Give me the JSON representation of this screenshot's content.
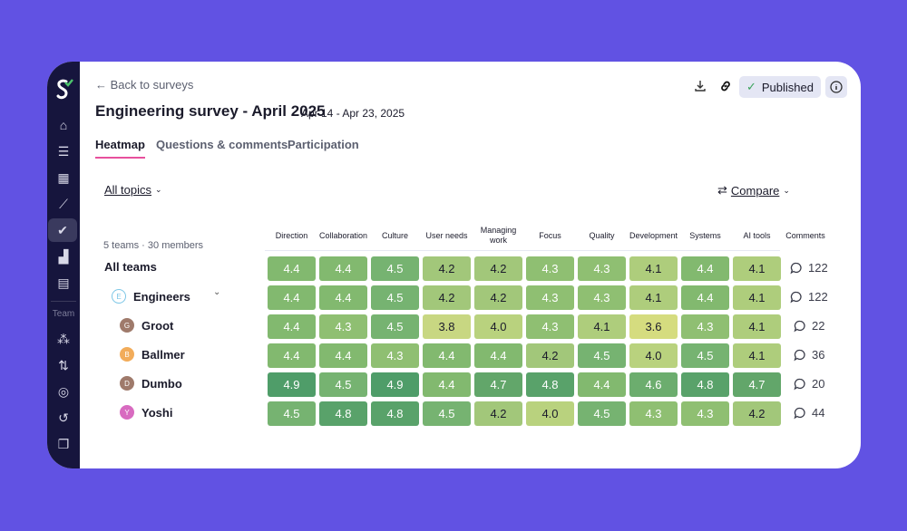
{
  "nav": {
    "back": "← Back to surveys",
    "team_label": "Team",
    "icons": [
      "home-icon",
      "list-icon",
      "grid-icon",
      "trend-icon",
      "survey-icon",
      "bars-icon",
      "calculator-icon"
    ],
    "team_icons": [
      "people-icon",
      "git-flow-icon",
      "target-icon",
      "loop-icon",
      "layers-icon"
    ]
  },
  "header": {
    "title": "Engineering survey - April 2025",
    "dates": "Apr 14 - Apr 23, 2025",
    "published": "Published",
    "status_color": "#3aa35b"
  },
  "tabs": [
    {
      "label": "Heatmap",
      "active": true
    },
    {
      "label": "Questions & comments"
    },
    {
      "label": "Participation"
    }
  ],
  "filters": {
    "topics": "All topics",
    "compare": "Compare"
  },
  "summary": "5 teams · 30 members",
  "columns": [
    "Direction",
    "Collaboration",
    "Culture",
    "User needs",
    "Managing work",
    "Focus",
    "Quality",
    "Development",
    "Systems",
    "AI tools"
  ],
  "comments_header": "Comments",
  "rows": [
    {
      "name": "All teams",
      "level": 0,
      "values": [
        4.4,
        4.4,
        4.5,
        4.2,
        4.2,
        4.3,
        4.3,
        4.1,
        4.4,
        4.1
      ],
      "comments": "122"
    },
    {
      "name": "Engineers",
      "level": 1,
      "initial": "E",
      "avatar_color": "#7cc6e6",
      "expandable": true,
      "values": [
        4.4,
        4.4,
        4.5,
        4.2,
        4.2,
        4.3,
        4.3,
        4.1,
        4.4,
        4.1
      ],
      "comments": "122"
    },
    {
      "name": "Groot",
      "level": 2,
      "initial": "G",
      "avatar_color": "#9f7a6b",
      "values": [
        4.4,
        4.3,
        4.5,
        3.8,
        4.0,
        4.3,
        4.1,
        3.6,
        4.3,
        4.1
      ],
      "comments": "22"
    },
    {
      "name": "Ballmer",
      "level": 2,
      "initial": "B",
      "avatar_color": "#f2ac5a",
      "values": [
        4.4,
        4.4,
        4.3,
        4.4,
        4.4,
        4.2,
        4.5,
        4.0,
        4.5,
        4.1
      ],
      "comments": "36"
    },
    {
      "name": "Dumbo",
      "level": 2,
      "initial": "D",
      "avatar_color": "#9f7a6b",
      "values": [
        4.9,
        4.5,
        4.9,
        4.4,
        4.7,
        4.8,
        4.4,
        4.6,
        4.8,
        4.7
      ],
      "comments": "20"
    },
    {
      "name": "Yoshi",
      "level": 2,
      "initial": "Y",
      "avatar_color": "#d86bc0",
      "values": [
        4.5,
        4.8,
        4.8,
        4.5,
        4.2,
        4.0,
        4.5,
        4.3,
        4.3,
        4.2
      ],
      "comments": "44"
    }
  ]
}
